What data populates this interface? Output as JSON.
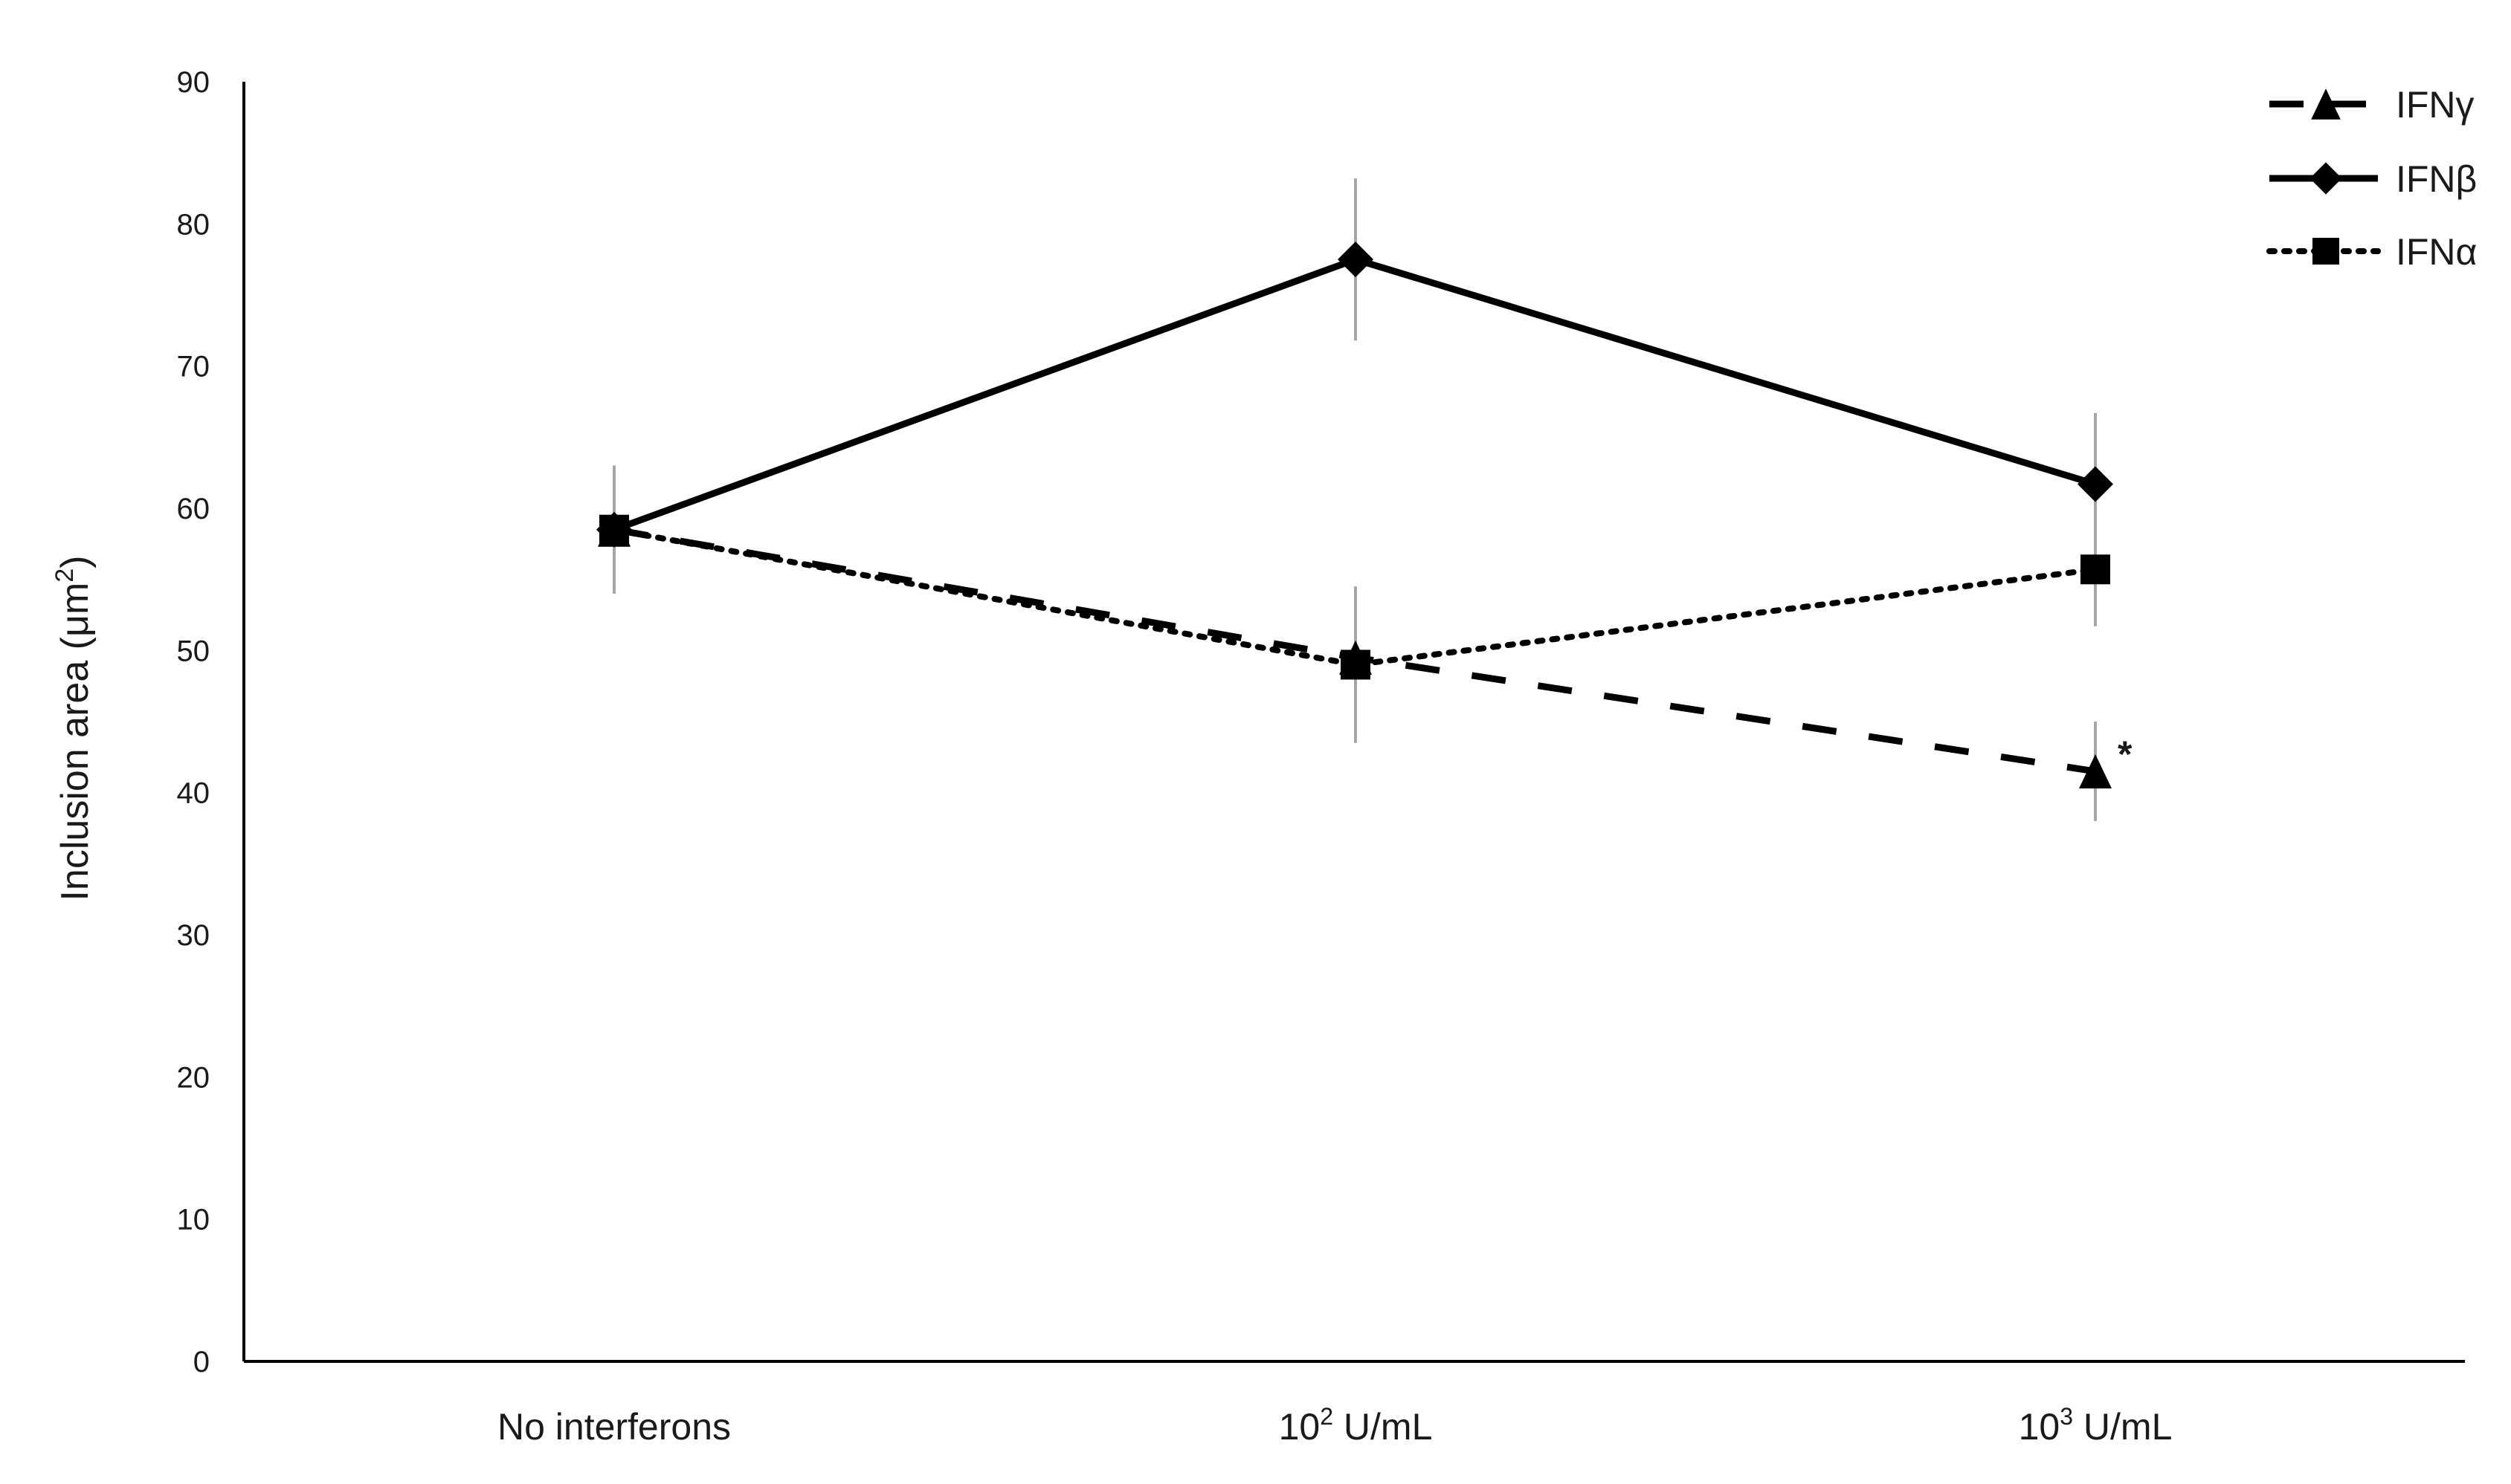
{
  "chart_data": {
    "type": "line",
    "title": "",
    "xlabel": "",
    "ylabel": "Inclusion area (μm²)",
    "ylabel_parts": {
      "main": "Inclusion area (μm",
      "sup": "2",
      "end": ")"
    },
    "ylim": [
      0,
      90
    ],
    "yticks": [
      0,
      10,
      20,
      30,
      40,
      50,
      60,
      70,
      80,
      90
    ],
    "grid": false,
    "legend_position": "top-right",
    "categories": [
      {
        "base": "No interferons",
        "sup": "",
        "rest": ""
      },
      {
        "base": "10",
        "sup": "2",
        "rest": " U/mL"
      },
      {
        "base": "10",
        "sup": "3",
        "rest": " U/mL"
      }
    ],
    "series": [
      {
        "name": "IFNγ",
        "marker": "triangle",
        "line_style": "dashed",
        "values": [
          58.5,
          49.5,
          41.5
        ],
        "errors": [
          4.5,
          5.0,
          3.5
        ],
        "color": "#000000"
      },
      {
        "name": "IFNβ",
        "marker": "diamond",
        "line_style": "solid",
        "values": [
          58.5,
          77.5,
          61.7
        ],
        "errors": [
          4.5,
          5.7,
          5.0
        ],
        "color": "#000000"
      },
      {
        "name": "IFNα",
        "marker": "square",
        "line_style": "dotted",
        "values": [
          58.5,
          49.0,
          55.7
        ],
        "errors": [
          4.5,
          5.5,
          4.0
        ],
        "color": "#000000"
      }
    ],
    "annotations": [
      {
        "text": "*",
        "series": "IFNγ",
        "category_index": 2
      }
    ],
    "error_bar_color": "#a6a6a6"
  }
}
